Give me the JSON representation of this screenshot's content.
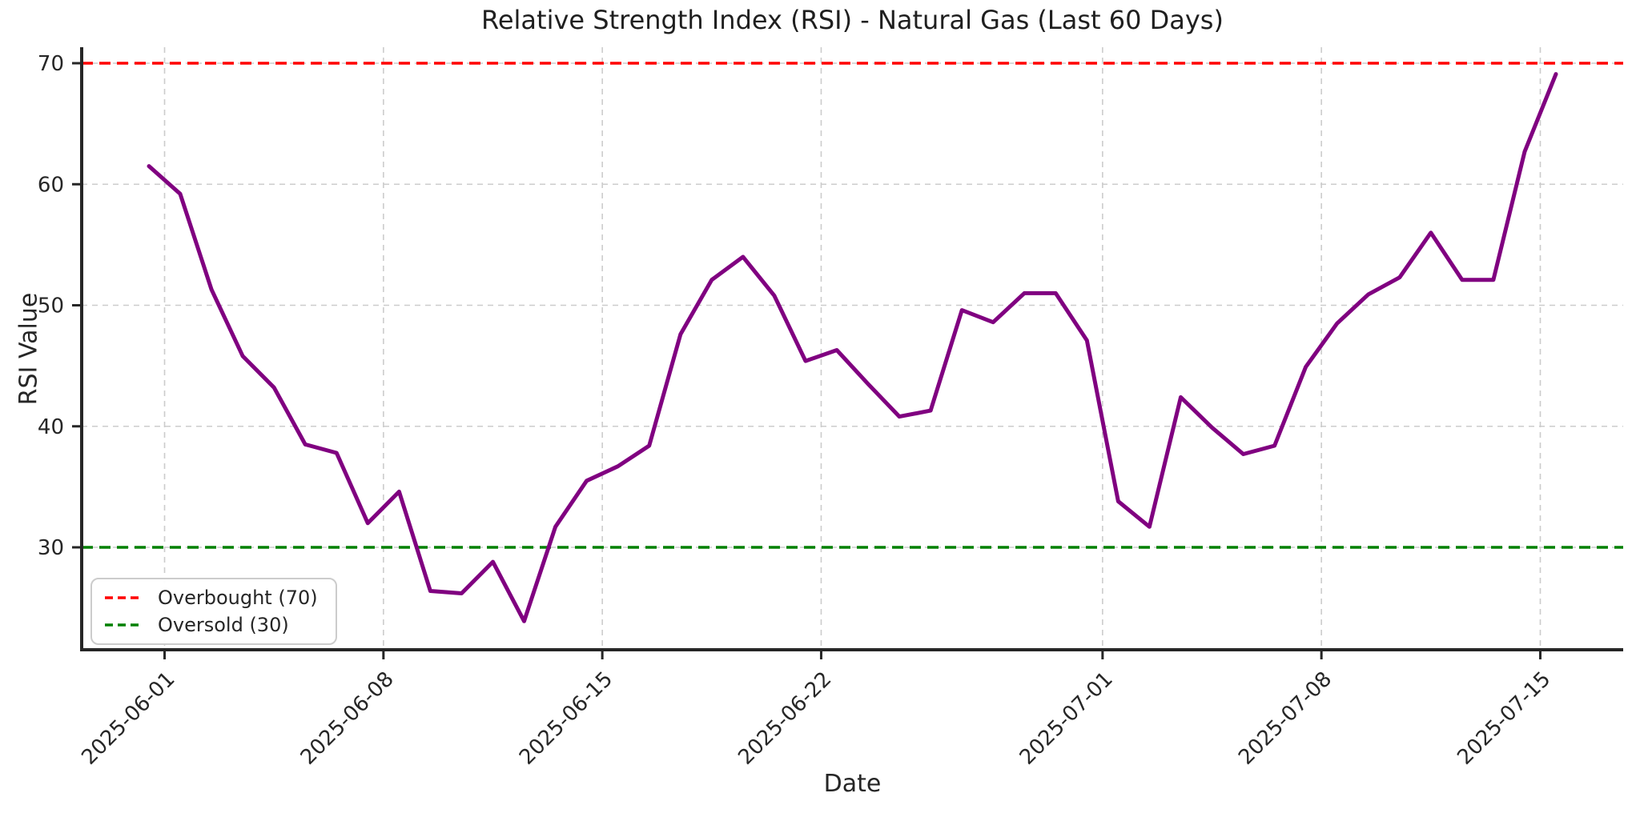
{
  "figure": {
    "background": "#ffffff"
  },
  "chart_data": {
    "type": "line",
    "title": "Relative Strength Index (RSI) - Natural Gas (Last 60 Days)",
    "xlabel": "Date",
    "ylabel": "RSI Value",
    "x": [
      "2025-05-31",
      "2025-06-01",
      "2025-06-02",
      "2025-06-03",
      "2025-06-04",
      "2025-06-05",
      "2025-06-06",
      "2025-06-07",
      "2025-06-08",
      "2025-06-09",
      "2025-06-10",
      "2025-06-11",
      "2025-06-12",
      "2025-06-13",
      "2025-06-14",
      "2025-06-15",
      "2025-06-16",
      "2025-06-17",
      "2025-06-18",
      "2025-06-19",
      "2025-06-20",
      "2025-06-21",
      "2025-06-22",
      "2025-06-23",
      "2025-06-24",
      "2025-06-25",
      "2025-06-26",
      "2025-06-27",
      "2025-06-28",
      "2025-06-29",
      "2025-06-30",
      "2025-07-01",
      "2025-07-02",
      "2025-07-03",
      "2025-07-04",
      "2025-07-05",
      "2025-07-06",
      "2025-07-07",
      "2025-07-08",
      "2025-07-09",
      "2025-07-10",
      "2025-07-11",
      "2025-07-12",
      "2025-07-13",
      "2025-07-14",
      "2025-07-15"
    ],
    "series": [
      {
        "name": "RSI",
        "color": "#800080",
        "values": [
          61.5,
          59.2,
          51.3,
          45.8,
          43.2,
          38.5,
          37.8,
          32.0,
          34.6,
          26.4,
          26.2,
          28.8,
          23.9,
          31.7,
          35.5,
          36.7,
          38.4,
          47.6,
          52.1,
          54.0,
          50.8,
          45.4,
          46.3,
          43.5,
          40.8,
          41.3,
          49.6,
          48.6,
          51.0,
          51.0,
          47.1,
          33.8,
          31.7,
          42.4,
          39.9,
          37.7,
          38.4,
          44.9,
          48.5,
          50.9,
          52.3,
          56.0,
          52.1,
          52.1,
          62.7,
          69.1
        ]
      }
    ],
    "ref_lines": [
      {
        "label": "Overbought (70)",
        "value": 70,
        "color": "#ff0000",
        "style": "dashed"
      },
      {
        "label": "Oversold (30)",
        "value": 30,
        "color": "#008000",
        "style": "dashed"
      }
    ],
    "yticks": [
      30,
      40,
      50,
      60,
      70
    ],
    "xticks": [
      "2025-06-01",
      "2025-06-08",
      "2025-06-15",
      "2025-06-22",
      "2025-07-01",
      "2025-07-08",
      "2025-07-15"
    ],
    "ylim": [
      21.5,
      71.3
    ],
    "grid": true,
    "grid_style": "dashed",
    "legend_position": "lower left"
  }
}
